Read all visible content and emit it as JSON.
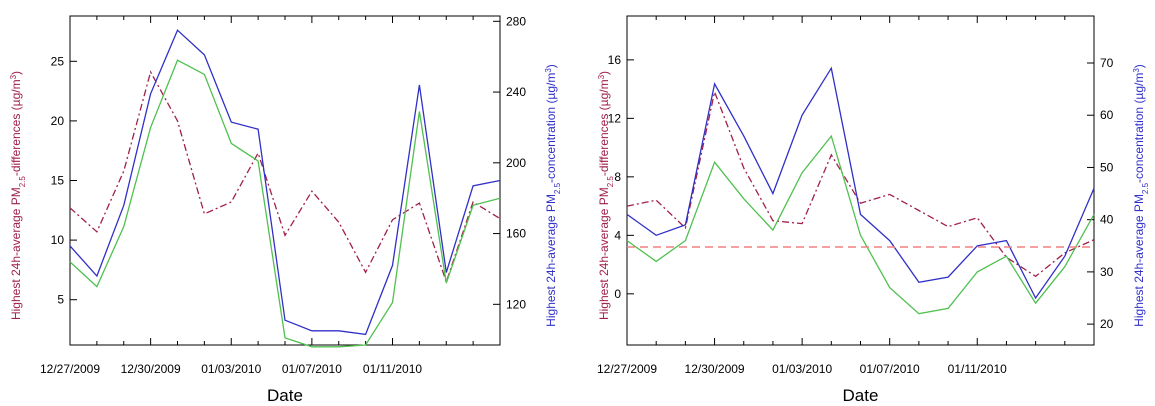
{
  "chart_data": [
    {
      "type": "line",
      "xlabel": "Date",
      "ylabel_left": "Highest 24h-average PM2.5-differences (µg/m³)",
      "ylabel_right": "Highest 24h-average PM2.5-concentration (µg/m³)",
      "x_tick_labels": [
        "12/27/2009",
        "12/30/2009",
        "01/03/2010",
        "01/07/2010",
        "01/11/2010"
      ],
      "x_tick_positions": [
        0,
        3,
        6,
        9,
        12
      ],
      "ylim_left": [
        1.2,
        28.8
      ],
      "ylim_right": [
        97,
        283
      ],
      "yticks_left": [
        5,
        10,
        15,
        20,
        25
      ],
      "yticks_right": [
        120,
        160,
        200,
        240,
        280
      ],
      "series": [
        {
          "axis": "left",
          "color": "#a0204a",
          "dash": true,
          "x": [
            0,
            1,
            2,
            3,
            4,
            5,
            6,
            7,
            8,
            9,
            10,
            11,
            12,
            13,
            14,
            15,
            16
          ],
          "y": [
            12.7,
            10.7,
            15.8,
            24.1,
            20.0,
            12.2,
            13.2,
            17.3,
            10.4,
            14.1,
            11.5,
            7.3,
            11.7,
            13.1,
            6.5,
            13.2,
            11.8
          ]
        },
        {
          "axis": "right",
          "color": "#3030c8",
          "dash": false,
          "x": [
            0,
            1,
            2,
            3,
            4,
            5,
            6,
            7,
            8,
            9,
            10,
            11,
            12,
            13,
            14,
            15,
            16
          ],
          "y": [
            153,
            136,
            176,
            239,
            275,
            261,
            223,
            219,
            111,
            105,
            105,
            103,
            142,
            244,
            138,
            187,
            190
          ]
        },
        {
          "axis": "right",
          "color": "#50c050",
          "dash": false,
          "x": [
            0,
            1,
            2,
            3,
            4,
            5,
            6,
            7,
            8,
            9,
            10,
            11,
            12,
            13,
            14,
            15,
            16
          ],
          "y": [
            144,
            130,
            164,
            220,
            258,
            250,
            211,
            201,
            101,
            96,
            96,
            97,
            121,
            229,
            132,
            176,
            180
          ]
        }
      ]
    },
    {
      "type": "line",
      "xlabel": "Date",
      "ylabel_left": "Highest 24h-average PM2.5-differences (µg/m³)",
      "ylabel_right": "Highest 24h-average PM2.5-concentration (µg/m³)",
      "x_tick_labels": [
        "12/27/2009",
        "12/30/2009",
        "01/03/2010",
        "01/07/2010",
        "01/11/2010"
      ],
      "x_tick_positions": [
        0,
        3,
        6,
        9,
        12
      ],
      "ylim_left": [
        -3.5,
        19
      ],
      "ylim_right": [
        16,
        79
      ],
      "yticks_left": [
        0,
        4,
        8,
        12,
        16
      ],
      "yticks_right": [
        20,
        30,
        40,
        50,
        60,
        70
      ],
      "series": [
        {
          "axis": "left",
          "color": "#a0204a",
          "dash": true,
          "x": [
            0,
            1,
            2,
            3,
            4,
            5,
            6,
            7,
            8,
            9,
            10,
            11,
            12,
            13,
            14,
            15,
            16
          ],
          "y": [
            6.0,
            6.4,
            4.5,
            13.8,
            8.6,
            5.0,
            4.8,
            9.5,
            6.2,
            6.8,
            5.7,
            4.6,
            5.2,
            2.5,
            1.2,
            2.8,
            3.7
          ]
        },
        {
          "axis": "right",
          "color": "#3030c8",
          "dash": false,
          "x": [
            0,
            1,
            2,
            3,
            4,
            5,
            6,
            7,
            8,
            9,
            10,
            11,
            12,
            13,
            14,
            15,
            16
          ],
          "y": [
            41,
            37,
            39,
            66,
            56,
            45,
            60,
            69,
            41,
            36,
            28,
            29,
            35,
            36,
            25,
            33,
            46
          ]
        },
        {
          "axis": "right",
          "color": "#50c050",
          "dash": false,
          "x": [
            0,
            1,
            2,
            3,
            4,
            5,
            6,
            7,
            8,
            9,
            10,
            11,
            12,
            13,
            14,
            15,
            16
          ],
          "y": [
            36,
            32,
            36,
            51,
            44,
            38,
            49,
            56,
            37,
            27,
            22,
            23,
            30,
            33,
            24,
            31,
            41
          ]
        },
        {
          "axis": "left",
          "color": "#f08080",
          "dash": true,
          "style": "reference",
          "x": [
            0,
            16
          ],
          "y": [
            3.2,
            3.2
          ]
        }
      ]
    }
  ]
}
